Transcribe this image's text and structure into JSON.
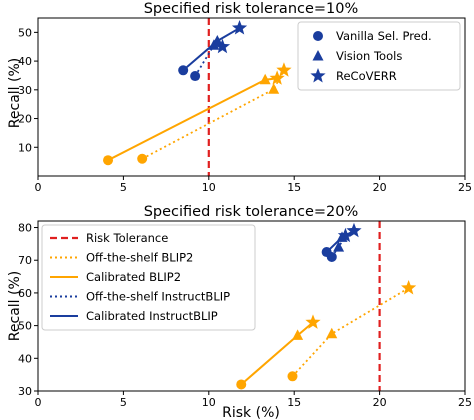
{
  "chart_data": [
    {
      "type": "line",
      "title": "Specified risk tolerance=10%",
      "xlabel": "",
      "ylabel": "Recall (%)",
      "xlim": [
        0,
        25
      ],
      "ylim": [
        0,
        55
      ],
      "xticks": [
        0,
        5,
        10,
        15,
        20,
        25
      ],
      "yticks": [
        10,
        20,
        30,
        40,
        50
      ],
      "grid": false,
      "risk_tolerance": 10,
      "legend_position": "top-right",
      "legend": [
        {
          "label": "Vanilla Sel. Pred.",
          "marker": "circle"
        },
        {
          "label": "Vision Tools",
          "marker": "triangle"
        },
        {
          "label": "ReCoVERR",
          "marker": "star"
        }
      ],
      "series": [
        {
          "model": "BLIP2",
          "variant": "Off-the-shelf",
          "color": "#ffa500",
          "dash": "dotted",
          "points": [
            {
              "x": 6.1,
              "y": 6.0,
              "marker": "circle"
            },
            {
              "x": 13.8,
              "y": 30.2,
              "marker": "triangle"
            },
            {
              "x": 14.4,
              "y": 36.8,
              "marker": "star"
            }
          ]
        },
        {
          "model": "BLIP2",
          "variant": "Calibrated",
          "color": "#ffa500",
          "dash": "solid",
          "points": [
            {
              "x": 4.1,
              "y": 5.5,
              "marker": "circle"
            },
            {
              "x": 13.3,
              "y": 33.5,
              "marker": "triangle"
            },
            {
              "x": 14.0,
              "y": 34.0,
              "marker": "star"
            }
          ]
        },
        {
          "model": "InstructBLIP",
          "variant": "Off-the-shelf",
          "color": "#1a3d9e",
          "dash": "dotted",
          "points": [
            {
              "x": 9.2,
              "y": 34.8,
              "marker": "circle"
            },
            {
              "x": 10.3,
              "y": 45.5,
              "marker": "triangle"
            },
            {
              "x": 10.8,
              "y": 45.0,
              "marker": "star"
            }
          ]
        },
        {
          "model": "InstructBLIP",
          "variant": "Calibrated",
          "color": "#1a3d9e",
          "dash": "solid",
          "points": [
            {
              "x": 8.5,
              "y": 36.8,
              "marker": "circle"
            },
            {
              "x": 10.5,
              "y": 47.0,
              "marker": "triangle"
            },
            {
              "x": 11.8,
              "y": 51.5,
              "marker": "star"
            }
          ]
        }
      ]
    },
    {
      "type": "line",
      "title": "Specified risk tolerance=20%",
      "xlabel": "Risk (%)",
      "ylabel": "Recall (%)",
      "xlim": [
        0,
        25
      ],
      "ylim": [
        30,
        82
      ],
      "xticks": [
        0,
        5,
        10,
        15,
        20,
        25
      ],
      "yticks": [
        30,
        40,
        50,
        60,
        70,
        80
      ],
      "grid": false,
      "risk_tolerance": 20,
      "legend_position": "top-left",
      "legend": [
        {
          "label": "Risk Tolerance",
          "color": "#e02020",
          "dash": "dashed"
        },
        {
          "label": "Off-the-shelf BLIP2",
          "color": "#ffa500",
          "dash": "dotted"
        },
        {
          "label": "Calibrated BLIP2",
          "color": "#ffa500",
          "dash": "solid"
        },
        {
          "label": "Off-the-shelf InstructBLIP",
          "color": "#1a3d9e",
          "dash": "dotted"
        },
        {
          "label": "Calibrated InstructBLIP",
          "color": "#1a3d9e",
          "dash": "solid"
        }
      ],
      "series": [
        {
          "model": "BLIP2",
          "variant": "Off-the-shelf",
          "color": "#ffa500",
          "dash": "dotted",
          "points": [
            {
              "x": 14.9,
              "y": 34.5,
              "marker": "circle"
            },
            {
              "x": 17.2,
              "y": 47.5,
              "marker": "triangle"
            },
            {
              "x": 21.7,
              "y": 61.5,
              "marker": "star"
            }
          ]
        },
        {
          "model": "BLIP2",
          "variant": "Calibrated",
          "color": "#ffa500",
          "dash": "solid",
          "points": [
            {
              "x": 11.9,
              "y": 32.0,
              "marker": "circle"
            },
            {
              "x": 15.2,
              "y": 47.0,
              "marker": "triangle"
            },
            {
              "x": 16.1,
              "y": 51.0,
              "marker": "star"
            }
          ]
        },
        {
          "model": "InstructBLIP",
          "variant": "Off-the-shelf",
          "color": "#1a3d9e",
          "dash": "dotted",
          "points": [
            {
              "x": 17.2,
              "y": 71.0,
              "marker": "circle"
            },
            {
              "x": 17.6,
              "y": 74.0,
              "marker": "triangle"
            },
            {
              "x": 18.0,
              "y": 77.5,
              "marker": "star"
            }
          ]
        },
        {
          "model": "InstructBLIP",
          "variant": "Calibrated",
          "color": "#1a3d9e",
          "dash": "solid",
          "points": [
            {
              "x": 16.9,
              "y": 72.5,
              "marker": "circle"
            },
            {
              "x": 17.8,
              "y": 77.0,
              "marker": "triangle"
            },
            {
              "x": 18.5,
              "y": 79.0,
              "marker": "star"
            }
          ]
        }
      ]
    }
  ]
}
